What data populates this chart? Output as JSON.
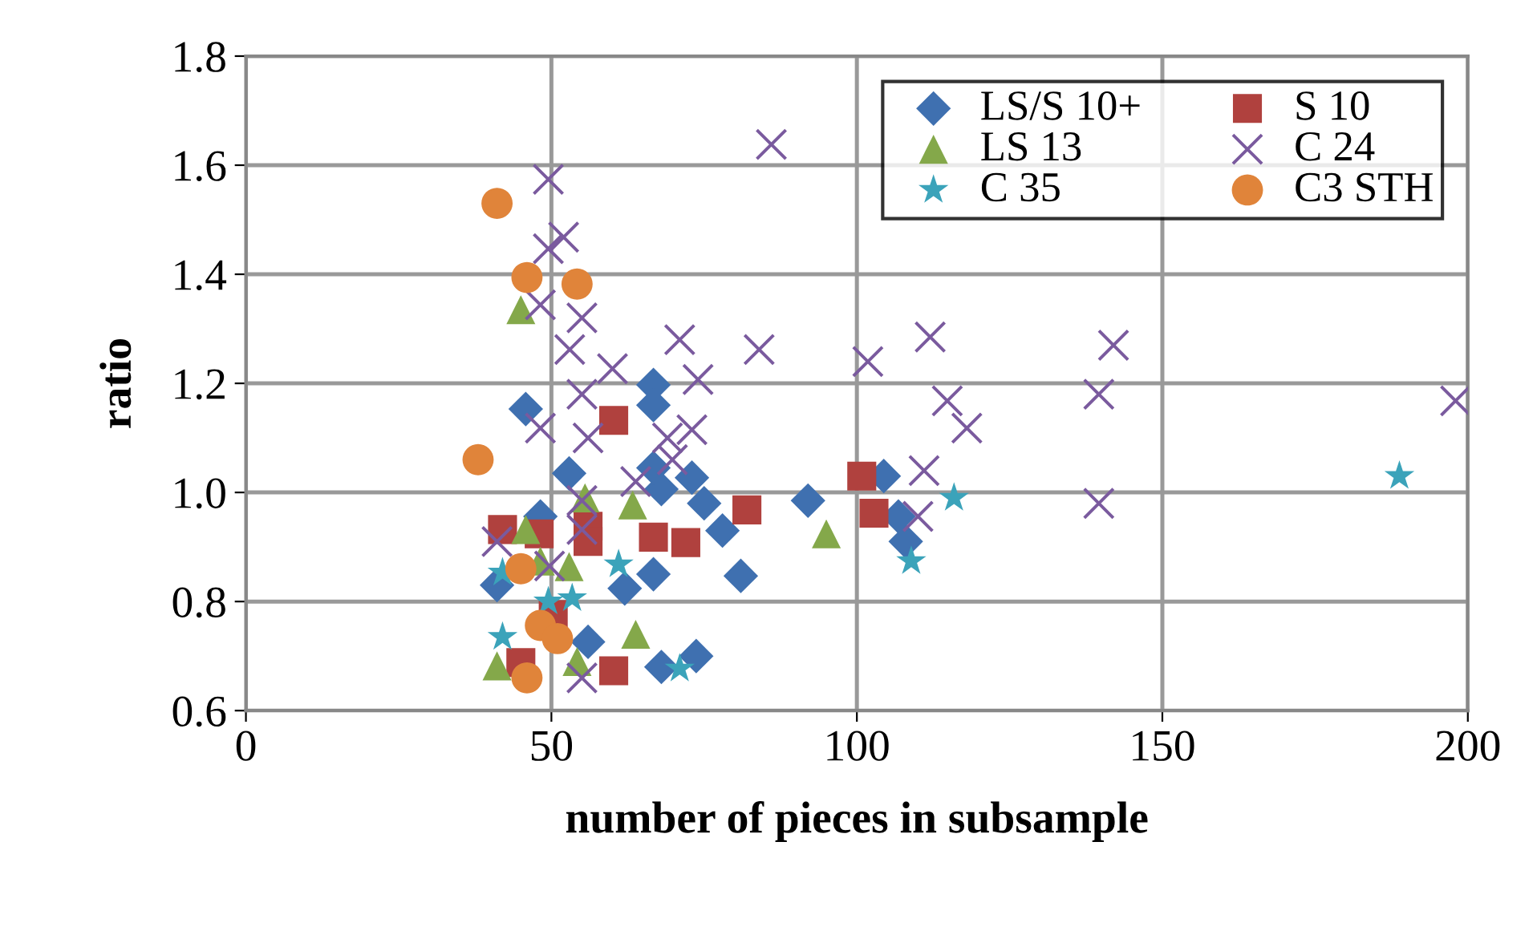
{
  "chart_data": {
    "type": "scatter",
    "xlabel": "number of pieces in subsample",
    "ylabel": "ratio",
    "xlim": [
      0,
      200
    ],
    "xticks": [
      0,
      50,
      100,
      150,
      200
    ],
    "ylim": [
      0.6,
      1.8
    ],
    "yticks": [
      {
        "value": 0.6,
        "label": "0.6"
      },
      {
        "value": 0.8,
        "label": "0.8"
      },
      {
        "value": 1.0,
        "label": "1.0"
      },
      {
        "value": 1.2,
        "label": "1.2"
      },
      {
        "value": 1.4,
        "label": "1.4"
      },
      {
        "value": 1.6,
        "label": "1.6"
      },
      {
        "value": 1.8,
        "label": "1.8"
      }
    ],
    "grid": true,
    "legend": "top right",
    "series": [
      {
        "name": "LS/S 10+",
        "color": "#3f70b0",
        "marker": "diamond",
        "x": [
          45.8,
          66.7,
          66.7,
          52.9,
          68,
          66.7,
          73,
          75,
          78,
          48.2,
          41.1,
          62,
          66.7,
          56,
          68,
          73.7,
          81,
          92,
          104.4,
          106.8,
          108
        ],
        "values": [
          1.153,
          1.197,
          1.16,
          1.035,
          1.006,
          1.045,
          1.027,
          0.98,
          0.93,
          0.956,
          0.83,
          0.824,
          0.85,
          0.726,
          0.68,
          0.7,
          0.847,
          0.985,
          1.03,
          0.956,
          0.91
        ]
      },
      {
        "name": "S 10",
        "color": "#b0413e",
        "marker": "square",
        "x": [
          60.2,
          42,
          48,
          56,
          56,
          66.7,
          72,
          45,
          60.2,
          50.3,
          82,
          100.8,
          102.8
        ],
        "values": [
          1.132,
          0.932,
          0.924,
          0.938,
          0.91,
          0.918,
          0.908,
          0.688,
          0.673,
          0.776,
          0.968,
          1.03,
          0.962
        ]
      },
      {
        "name": "LS 13",
        "color": "#84a84a",
        "marker": "triangle",
        "x": [
          45,
          55.5,
          63.3,
          45.8,
          48.2,
          52.9,
          63.8,
          41.1,
          54.2,
          95
        ],
        "values": [
          1.335,
          0.99,
          0.977,
          0.932,
          0.874,
          0.864,
          0.74,
          0.682,
          0.69,
          0.924
        ]
      },
      {
        "name": "C 24",
        "color": "#7a5a9e",
        "marker": "cross",
        "x": [
          49.5,
          52,
          49.5,
          48.2,
          55,
          53,
          60,
          71,
          74,
          55,
          48.2,
          56,
          69,
          73,
          69.8,
          63.8,
          55,
          55,
          41.1,
          49.7,
          55,
          86,
          84,
          101.8,
          112,
          114.8,
          118,
          111,
          110,
          142,
          139.6,
          139.6,
          198
        ],
        "values": [
          1.574,
          1.468,
          1.447,
          1.344,
          1.32,
          1.262,
          1.227,
          1.28,
          1.207,
          1.18,
          1.118,
          1.1,
          1.1,
          1.115,
          1.06,
          1.02,
          0.985,
          0.932,
          0.91,
          0.865,
          0.66,
          1.638,
          1.262,
          1.24,
          1.285,
          1.168,
          1.118,
          1.04,
          0.956,
          1.27,
          1.18,
          0.98,
          1.168
        ]
      },
      {
        "name": "C 35",
        "color": "#3ba3ba",
        "marker": "star",
        "x": [
          61,
          42,
          49.5,
          53.4,
          42,
          71,
          115.9,
          108.9,
          188.8
        ],
        "values": [
          0.868,
          0.853,
          0.8,
          0.806,
          0.735,
          0.677,
          0.99,
          0.874,
          1.03
        ]
      },
      {
        "name": "C3 STH",
        "color": "#e0843a",
        "marker": "circle",
        "x": [
          41.1,
          46,
          54.2,
          38,
          45,
          48.2,
          51,
          46
        ],
        "values": [
          1.53,
          1.394,
          1.382,
          1.06,
          0.86,
          0.756,
          0.732,
          0.66
        ]
      }
    ]
  }
}
